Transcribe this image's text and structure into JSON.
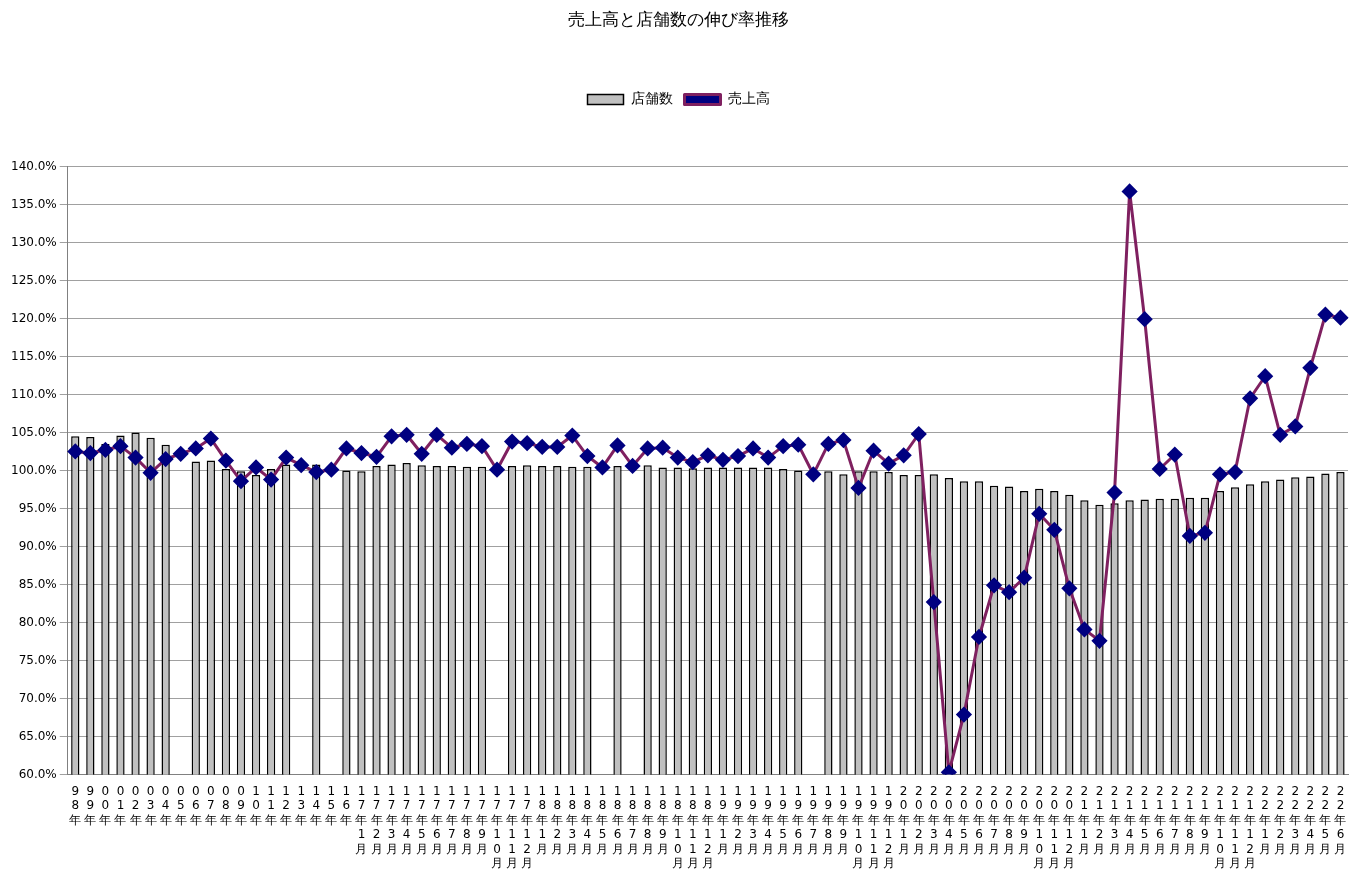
{
  "chart_data": {
    "type": "bar",
    "title": "売上高と店舗数の伸び率推移",
    "categories": [
      "98年",
      "99年",
      "00年",
      "01年",
      "02年",
      "03年",
      "04年",
      "05年",
      "06年",
      "07年",
      "08年",
      "09年",
      "10年",
      "11年",
      "12年",
      "13年",
      "14年",
      "15年",
      "16年",
      "17年1月",
      "17年2月",
      "17年3月",
      "17年4月",
      "17年5月",
      "17年6月",
      "17年7月",
      "17年8月",
      "17年9月",
      "17年10月",
      "17年11月",
      "17年12月",
      "18年1月",
      "18年2月",
      "18年3月",
      "18年4月",
      "18年5月",
      "18年6月",
      "18年7月",
      "18年8月",
      "18年9月",
      "18年10月",
      "18年11月",
      "18年12月",
      "19年1月",
      "19年2月",
      "19年3月",
      "19年4月",
      "19年5月",
      "19年6月",
      "19年7月",
      "19年8月",
      "19年9月",
      "19年10月",
      "19年11月",
      "19年12月",
      "20年1月",
      "20年2月",
      "20年3月",
      "20年4月",
      "20年5月",
      "20年6月",
      "20年7月",
      "20年8月",
      "20年9月",
      "20年10月",
      "20年11月",
      "20年12月",
      "21年1月",
      "21年2月",
      "21年3月",
      "21年4月",
      "21年5月",
      "21年6月",
      "21年7月",
      "21年8月",
      "21年9月",
      "21年10月",
      "21年11月",
      "21年12月",
      "22年1月",
      "22年2月",
      "22年3月",
      "22年4月",
      "22年5月",
      "22年6月"
    ],
    "series": [
      {
        "name": "店舗数",
        "color": "#c0c0c0",
        "values": [
          104.5,
          104.4,
          103.5,
          104.6,
          105.0,
          104.3,
          103.4,
          null,
          101.2,
          101.3,
          100.2,
          99.9,
          99.4,
          100.2,
          100.8,
          null,
          100.8,
          null,
          100.0,
          99.9,
          100.6,
          100.8,
          101.0,
          100.7,
          100.6,
          100.6,
          100.5,
          100.5,
          null,
          100.6,
          100.7,
          100.6,
          100.6,
          100.5,
          100.5,
          null,
          100.6,
          null,
          100.7,
          100.4,
          100.4,
          100.3,
          100.4,
          100.4,
          100.4,
          100.4,
          100.4,
          100.2,
          100.0,
          null,
          99.9,
          99.5,
          99.9,
          99.9,
          99.8,
          99.4,
          99.4,
          99.5,
          99.0,
          98.6,
          98.6,
          98.0,
          97.9,
          97.3,
          97.6,
          97.3,
          96.8,
          96.1,
          95.5,
          95.7,
          96.1,
          96.2,
          96.3,
          96.3,
          96.4,
          96.4,
          97.3,
          97.8,
          98.2,
          98.6,
          98.8,
          99.1,
          99.2,
          99.6,
          99.8
        ]
      },
      {
        "name": "売上高",
        "type": "line",
        "color": "#7f2060",
        "marker": "diamond",
        "values": [
          102.5,
          102.3,
          102.7,
          103.2,
          101.7,
          99.7,
          101.5,
          102.2,
          102.9,
          104.2,
          101.3,
          98.6,
          100.4,
          98.8,
          101.7,
          100.7,
          99.8,
          100.1,
          102.9,
          102.3,
          101.8,
          104.5,
          104.7,
          102.2,
          104.7,
          103.0,
          103.5,
          103.2,
          100.1,
          103.8,
          103.6,
          103.1,
          103.1,
          104.6,
          101.9,
          100.4,
          103.3,
          100.6,
          102.9,
          103.0,
          101.7,
          101.1,
          102.0,
          101.4,
          101.9,
          102.9,
          101.7,
          103.2,
          103.4,
          99.5,
          103.5,
          104.0,
          97.7,
          102.6,
          100.9,
          102.0,
          104.8,
          82.7,
          60.3,
          67.9,
          78.1,
          84.9,
          84.0,
          85.9,
          94.3,
          92.2,
          84.5,
          79.1,
          77.6,
          97.1,
          136.7,
          119.9,
          100.2,
          102.1,
          91.4,
          91.8,
          99.5,
          99.8,
          109.5,
          112.4,
          104.7,
          105.8,
          113.5,
          120.5,
          120.1
        ]
      }
    ],
    "ylim": [
      60,
      140
    ],
    "yticks": [
      {
        "value": 60,
        "label": "60.0%"
      },
      {
        "value": 65,
        "label": "65.0%"
      },
      {
        "value": 70,
        "label": "70.0%"
      },
      {
        "value": 75,
        "label": "75.0%"
      },
      {
        "value": 80,
        "label": "80.0%"
      },
      {
        "value": 85,
        "label": "85.0%"
      },
      {
        "value": 90,
        "label": "90.0%"
      },
      {
        "value": 95,
        "label": "95.0%"
      },
      {
        "value": 100,
        "label": "100.0%"
      },
      {
        "value": 105,
        "label": "105.0%"
      },
      {
        "value": 110,
        "label": "110.0%"
      },
      {
        "value": 115,
        "label": "115.0%"
      },
      {
        "value": 120,
        "label": "120.0%"
      },
      {
        "value": 125,
        "label": "125.0%"
      },
      {
        "value": 130,
        "label": "130.0%"
      },
      {
        "value": 135,
        "label": "135.0%"
      },
      {
        "value": 140,
        "label": "140.0%"
      }
    ],
    "grid": "y",
    "legend": "top"
  }
}
